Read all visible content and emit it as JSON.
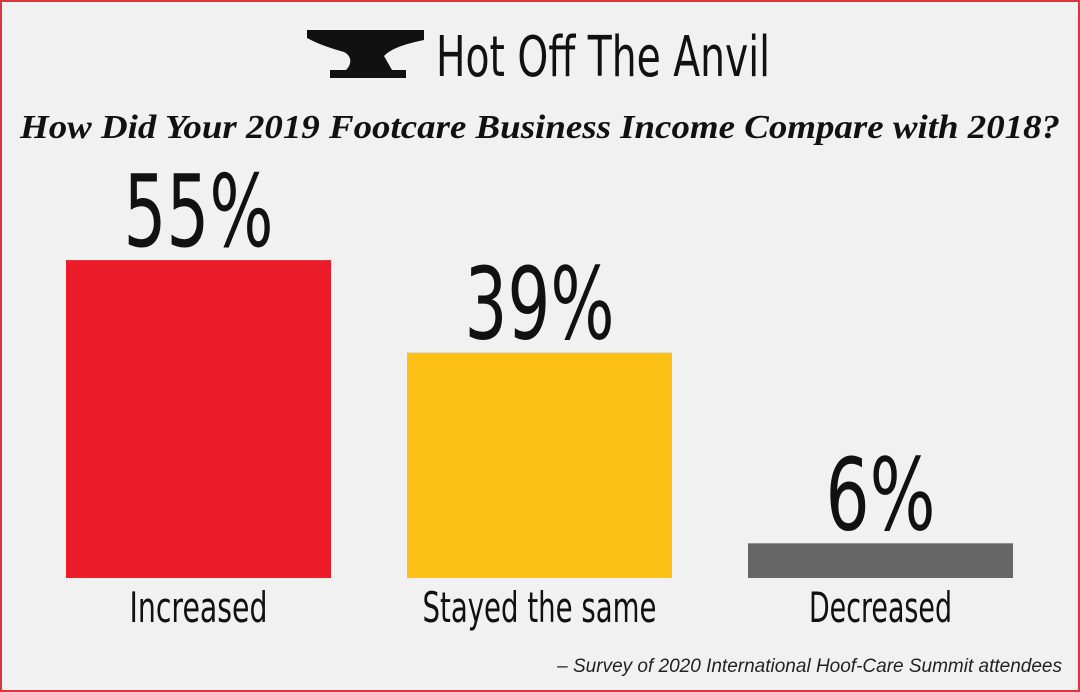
{
  "chart_data": {
    "type": "bar",
    "brand": "Hot Off The Anvil",
    "title": "How Did Your 2019 Footcare Business Income Compare with 2018?",
    "categories": [
      "Increased",
      "Stayed the same",
      "Decreased"
    ],
    "values": [
      55,
      39,
      6
    ],
    "value_labels": [
      "55%",
      "39%",
      "6%"
    ],
    "colors": [
      "#ed1c2a",
      "#fdc016",
      "#666666"
    ],
    "note": "– Survey of 2020 International Hoof-Care Summit attendees"
  }
}
